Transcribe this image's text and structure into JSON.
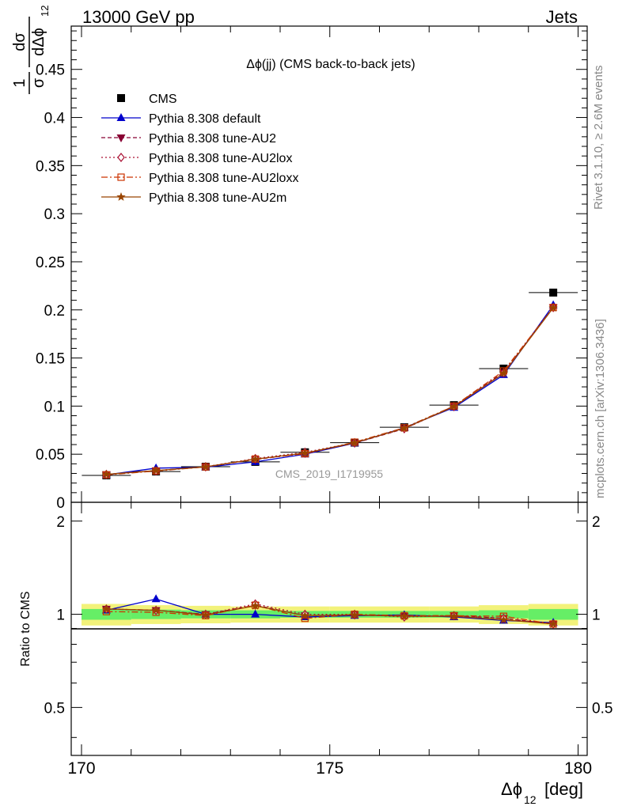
{
  "header": {
    "left": "13000 GeV pp",
    "right": "Jets"
  },
  "side_labels": {
    "rivet": "Rivet 3.1.10, ≥ 2.6M events",
    "mcplots": "mcplots.cern.ch [arXiv:1306.3436]"
  },
  "analysis_id": "CMS_2019_I1719955",
  "colors": {
    "cms": "#000000",
    "default": "#0000cc",
    "au2": "#880033",
    "au2lox": "#aa1133",
    "au2loxx": "#cc3300",
    "au2m": "#994400",
    "band_yellow": "#f2f27a",
    "band_green": "#66ee66"
  },
  "chart_data": [
    {
      "type": "line",
      "title": "Δϕ(jj) (CMS back-to-back jets)",
      "ylabel": "1/σ dσ/dΔϕ_12 [deg^-1]",
      "xlabel": "Δϕ_12 [deg]",
      "xlim": [
        170,
        180
      ],
      "ylim": [
        0,
        0.495
      ],
      "xticks": [
        "170",
        "175",
        "180"
      ],
      "yticks": [
        "0",
        "0.05",
        "0.1",
        "0.15",
        "0.2",
        "0.25",
        "0.3",
        "0.35",
        "0.4",
        "0.45"
      ],
      "x": [
        170.5,
        171.5,
        172.5,
        173.5,
        174.5,
        175.5,
        176.5,
        177.5,
        178.5,
        179.5
      ],
      "legend_position": "top-left",
      "series": [
        {
          "name": "CMS",
          "marker": "square",
          "values": [
            0.028,
            0.032,
            0.037,
            0.042,
            0.052,
            0.062,
            0.078,
            0.101,
            0.139,
            0.218
          ]
        },
        {
          "name": "Pythia 8.308 default",
          "marker": "triangle-up",
          "dash": "",
          "values": [
            0.0285,
            0.0355,
            0.0365,
            0.042,
            0.05,
            0.0615,
            0.0775,
            0.0985,
            0.1325,
            0.205
          ]
        },
        {
          "name": "Pythia 8.308 tune-AU2",
          "marker": "triangle-down",
          "dash": "5,3",
          "values": [
            0.029,
            0.033,
            0.0368,
            0.0445,
            0.051,
            0.0615,
            0.0765,
            0.1,
            0.135,
            0.2025
          ]
        },
        {
          "name": "Pythia 8.308 tune-AU2lox",
          "marker": "diamond",
          "dash": "2,3",
          "values": [
            0.029,
            0.0328,
            0.037,
            0.0455,
            0.052,
            0.062,
            0.0765,
            0.0995,
            0.1345,
            0.2025
          ]
        },
        {
          "name": "Pythia 8.308 tune-AU2loxx",
          "marker": "open-square",
          "dash": "8,3,2,3",
          "values": [
            0.0285,
            0.0325,
            0.0368,
            0.045,
            0.0505,
            0.0625,
            0.0775,
            0.1,
            0.1365,
            0.2025
          ]
        },
        {
          "name": "Pythia 8.308 tune-AU2m",
          "marker": "star",
          "dash": "",
          "values": [
            0.029,
            0.033,
            0.0368,
            0.0448,
            0.0512,
            0.0618,
            0.077,
            0.0995,
            0.134,
            0.2022
          ]
        }
      ]
    },
    {
      "type": "line",
      "ylabel": "Ratio to CMS",
      "xlabel": "Δϕ_12 [deg]",
      "xlim": [
        170,
        180
      ],
      "ylim": [
        0.35,
        2.3
      ],
      "ylog": true,
      "yticks": [
        "0.5",
        "1",
        "2"
      ],
      "x": [
        170.5,
        171.5,
        172.5,
        173.5,
        174.5,
        175.5,
        176.5,
        177.5,
        178.5,
        179.5
      ],
      "band_yellow": [
        0.08,
        0.07,
        0.065,
        0.06,
        0.06,
        0.06,
        0.06,
        0.06,
        0.07,
        0.08
      ],
      "band_green": [
        0.04,
        0.035,
        0.03,
        0.03,
        0.025,
        0.025,
        0.025,
        0.025,
        0.03,
        0.04
      ],
      "series": [
        {
          "name": "Pythia 8.308 default",
          "values": [
            1.03,
            1.12,
            1.0,
            1.0,
            0.98,
            0.99,
            0.995,
            0.98,
            0.955,
            0.94
          ]
        },
        {
          "name": "Pythia 8.308 tune-AU2",
          "values": [
            1.04,
            1.03,
            1.0,
            1.07,
            0.99,
            0.995,
            0.985,
            0.99,
            0.97,
            0.93
          ]
        },
        {
          "name": "Pythia 8.308 tune-AU2lox",
          "values": [
            1.04,
            1.03,
            1.0,
            1.08,
            1.0,
            1.0,
            0.98,
            0.99,
            0.97,
            0.93
          ]
        },
        {
          "name": "Pythia 8.308 tune-AU2loxx",
          "values": [
            1.02,
            1.015,
            0.99,
            1.07,
            0.97,
            1.0,
            0.99,
            0.99,
            0.985,
            0.93
          ]
        },
        {
          "name": "Pythia 8.308 tune-AU2m",
          "values": [
            1.04,
            1.03,
            0.995,
            1.065,
            0.99,
            0.995,
            0.985,
            0.985,
            0.96,
            0.93
          ]
        }
      ]
    }
  ]
}
